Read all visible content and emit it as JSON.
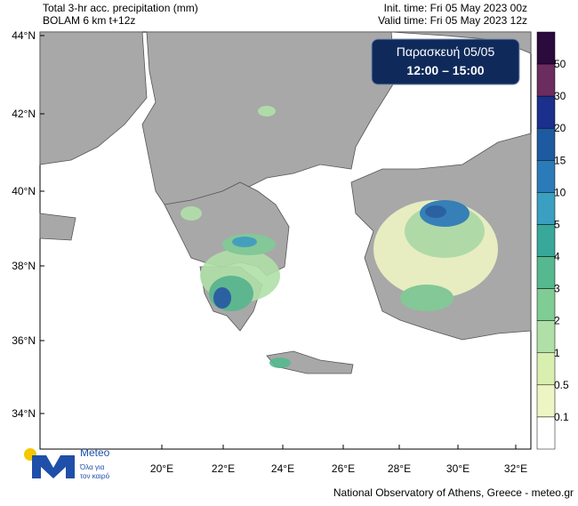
{
  "header": {
    "title_line1": "Total 3-hr acc. precipitation (mm)",
    "title_line2": "BOLAM 6 km t+12z",
    "init_time": "Init. time: Fri 05 May 2023 00z",
    "valid_time": "Valid time: Fri 05 May 2023 12z"
  },
  "badge": {
    "day": "Παρασκευή 05/05",
    "hours": "12:00 – 15:00"
  },
  "lat_labels": [
    "44°N",
    "42°N",
    "40°N",
    "38°N",
    "36°N",
    "34°N"
  ],
  "lon_labels": [
    "20°E",
    "22°E",
    "24°E",
    "26°E",
    "28°E",
    "30°E",
    "32°E"
  ],
  "colorbar": {
    "levels": [
      "50",
      "30",
      "20",
      "15",
      "10",
      "5",
      "4",
      "3",
      "2",
      "1",
      "0.5",
      "0.1"
    ],
    "colors": [
      "#2b0a3d",
      "#6b2c5f",
      "#1b2f8c",
      "#1e5aa0",
      "#2b7bb9",
      "#3a9fc0",
      "#38a89b",
      "#55b88e",
      "#7fcc95",
      "#b0e0a8",
      "#d9efb0",
      "#eef5c4",
      "#ffffff"
    ]
  },
  "logo": {
    "name": "Meteo",
    "tagline_1": "Όλα για",
    "tagline_2": "τον καιρό"
  },
  "footer": "National Observatory of Athens, Greece - meteo.gr"
}
